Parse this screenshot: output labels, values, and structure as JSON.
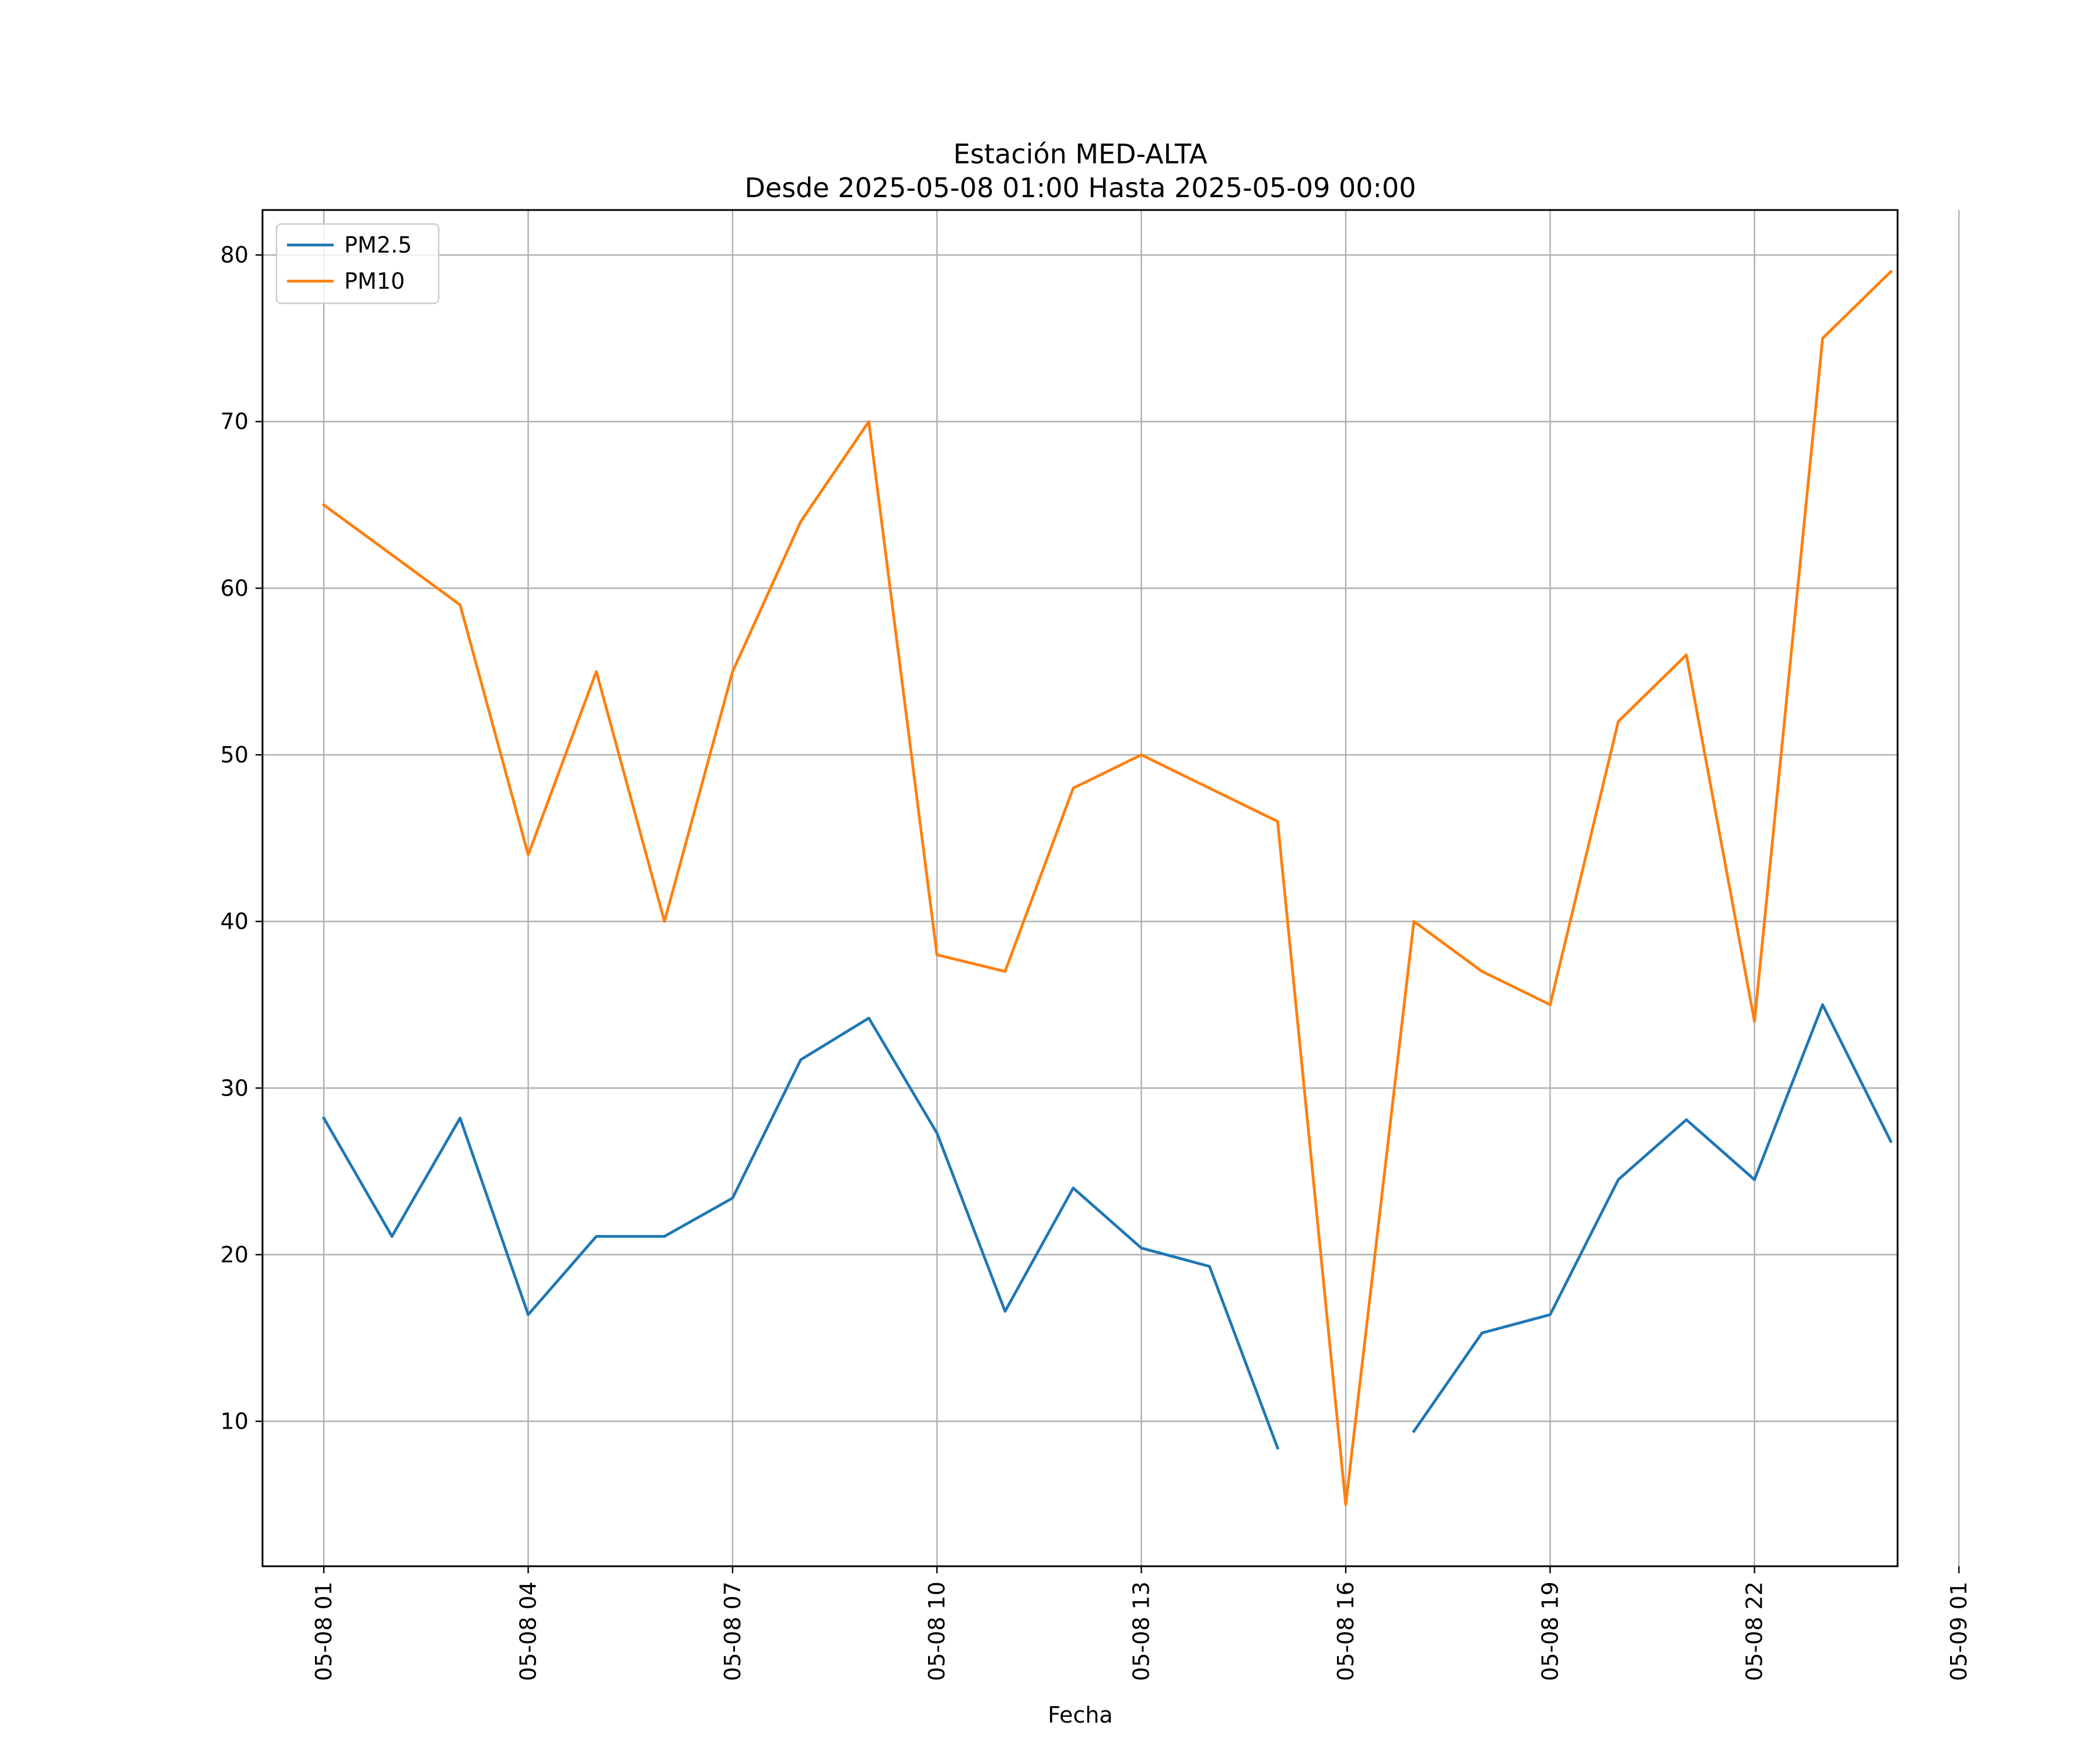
{
  "chart_data": {
    "type": "line",
    "title": "Estación MED-ALTA",
    "subtitle": "Desde 2025-05-08 01:00 Hasta 2025-05-09 00:00",
    "xlabel": "Fecha",
    "ylabel": "",
    "x": [
      "05-08 01",
      "05-08 02",
      "05-08 03",
      "05-08 04",
      "05-08 05",
      "05-08 06",
      "05-08 07",
      "05-08 08",
      "05-08 09",
      "05-08 10",
      "05-08 11",
      "05-08 12",
      "05-08 13",
      "05-08 14",
      "05-08 15",
      "05-08 16",
      "05-08 17",
      "05-08 18",
      "05-08 19",
      "05-08 20",
      "05-08 21",
      "05-08 22",
      "05-08 23",
      "05-09 00"
    ],
    "x_ticks": [
      "05-08 01",
      "05-08 04",
      "05-08 07",
      "05-08 10",
      "05-08 13",
      "05-08 16",
      "05-08 19",
      "05-08 22",
      "05-09 01"
    ],
    "xlim_hours": [
      0.1,
      24.1
    ],
    "y_ticks": [
      10,
      20,
      30,
      40,
      50,
      60,
      70,
      80
    ],
    "ylim": [
      1.3,
      82.7
    ],
    "grid": true,
    "legend_position": "top-left",
    "series": [
      {
        "name": "PM2.5",
        "color": "#1f77b4",
        "values": [
          28.2,
          21.1,
          28.2,
          16.4,
          21.1,
          21.1,
          23.4,
          31.7,
          34.2,
          27.3,
          16.6,
          24.0,
          20.4,
          19.3,
          8.4,
          null,
          9.4,
          15.3,
          16.4,
          24.5,
          28.1,
          24.5,
          35.0,
          26.8
        ]
      },
      {
        "name": "PM10",
        "color": "#ff7f0e",
        "values": [
          65,
          62,
          59,
          44,
          55,
          40,
          55,
          64,
          70,
          38,
          37,
          48,
          50,
          48,
          46,
          5,
          40,
          37,
          35,
          52,
          56,
          34,
          75,
          79
        ]
      }
    ]
  }
}
